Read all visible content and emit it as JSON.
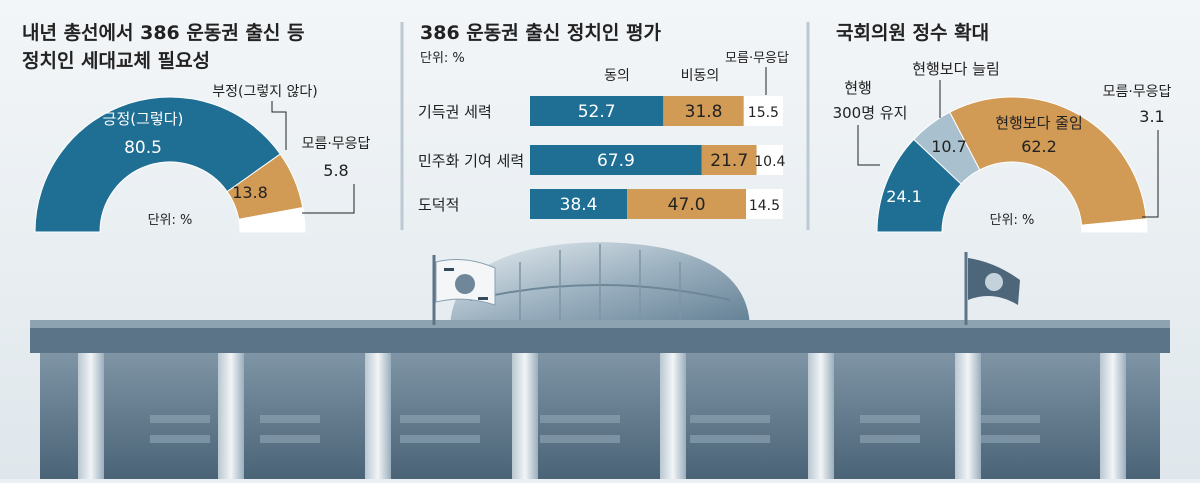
{
  "colors": {
    "blue": "#1f6f95",
    "tan": "#d19a55",
    "white": "#ffffff",
    "lightblue": "#a9c1cf",
    "text": "#222222",
    "background": "#e9eff3"
  },
  "chart_data": [
    {
      "type": "pie",
      "style": "semi-donut",
      "title": "내년 총선에서 386 운동권 출신 등",
      "subtitle": "정치인 세대교체 필요성",
      "unit_label": "단위: %",
      "slices": [
        {
          "label": "긍정(그렇다)",
          "value": 80.5,
          "color": "#1f6f95"
        },
        {
          "label": "부정(그렇지 않다)",
          "value": 13.8,
          "color": "#d19a55"
        },
        {
          "label": "모름·무응답",
          "value": 5.8,
          "color": "#ffffff"
        }
      ]
    },
    {
      "type": "bar",
      "orientation": "horizontal",
      "stacked": true,
      "title": "386 운동권 출신 정치인 평가",
      "unit_label": "단위: %",
      "categories": [
        "기득권 세력",
        "민주화 기여 세력",
        "도덕적"
      ],
      "series": [
        {
          "name": "동의",
          "values": [
            52.7,
            67.9,
            38.4
          ],
          "color": "#1f6f95"
        },
        {
          "name": "비동의",
          "values": [
            31.8,
            21.7,
            47.0
          ],
          "color": "#d19a55"
        },
        {
          "name": "모름·무응답",
          "values": [
            15.5,
            10.4,
            14.5
          ],
          "color": "#ffffff"
        }
      ],
      "value_labels": [
        [
          "52.7",
          "31.8",
          "15.5"
        ],
        [
          "67.9",
          "21.7",
          "10.4"
        ],
        [
          "38.4",
          "47.0",
          "14.5"
        ]
      ]
    },
    {
      "type": "pie",
      "style": "semi-donut",
      "title": "국회의원 정수 확대",
      "unit_label": "단위: %",
      "slices": [
        {
          "label": "현행 300명 유지",
          "label_lines": [
            "현행",
            "300명 유지"
          ],
          "value": 24.1,
          "color": "#1f6f95"
        },
        {
          "label": "현행보다 늘림",
          "value": 10.7,
          "color": "#a9c1cf"
        },
        {
          "label": "현행보다 줄임",
          "value": 62.2,
          "color": "#d19a55"
        },
        {
          "label": "모름·무응답",
          "value": 3.1,
          "color": "#ffffff"
        }
      ]
    }
  ]
}
